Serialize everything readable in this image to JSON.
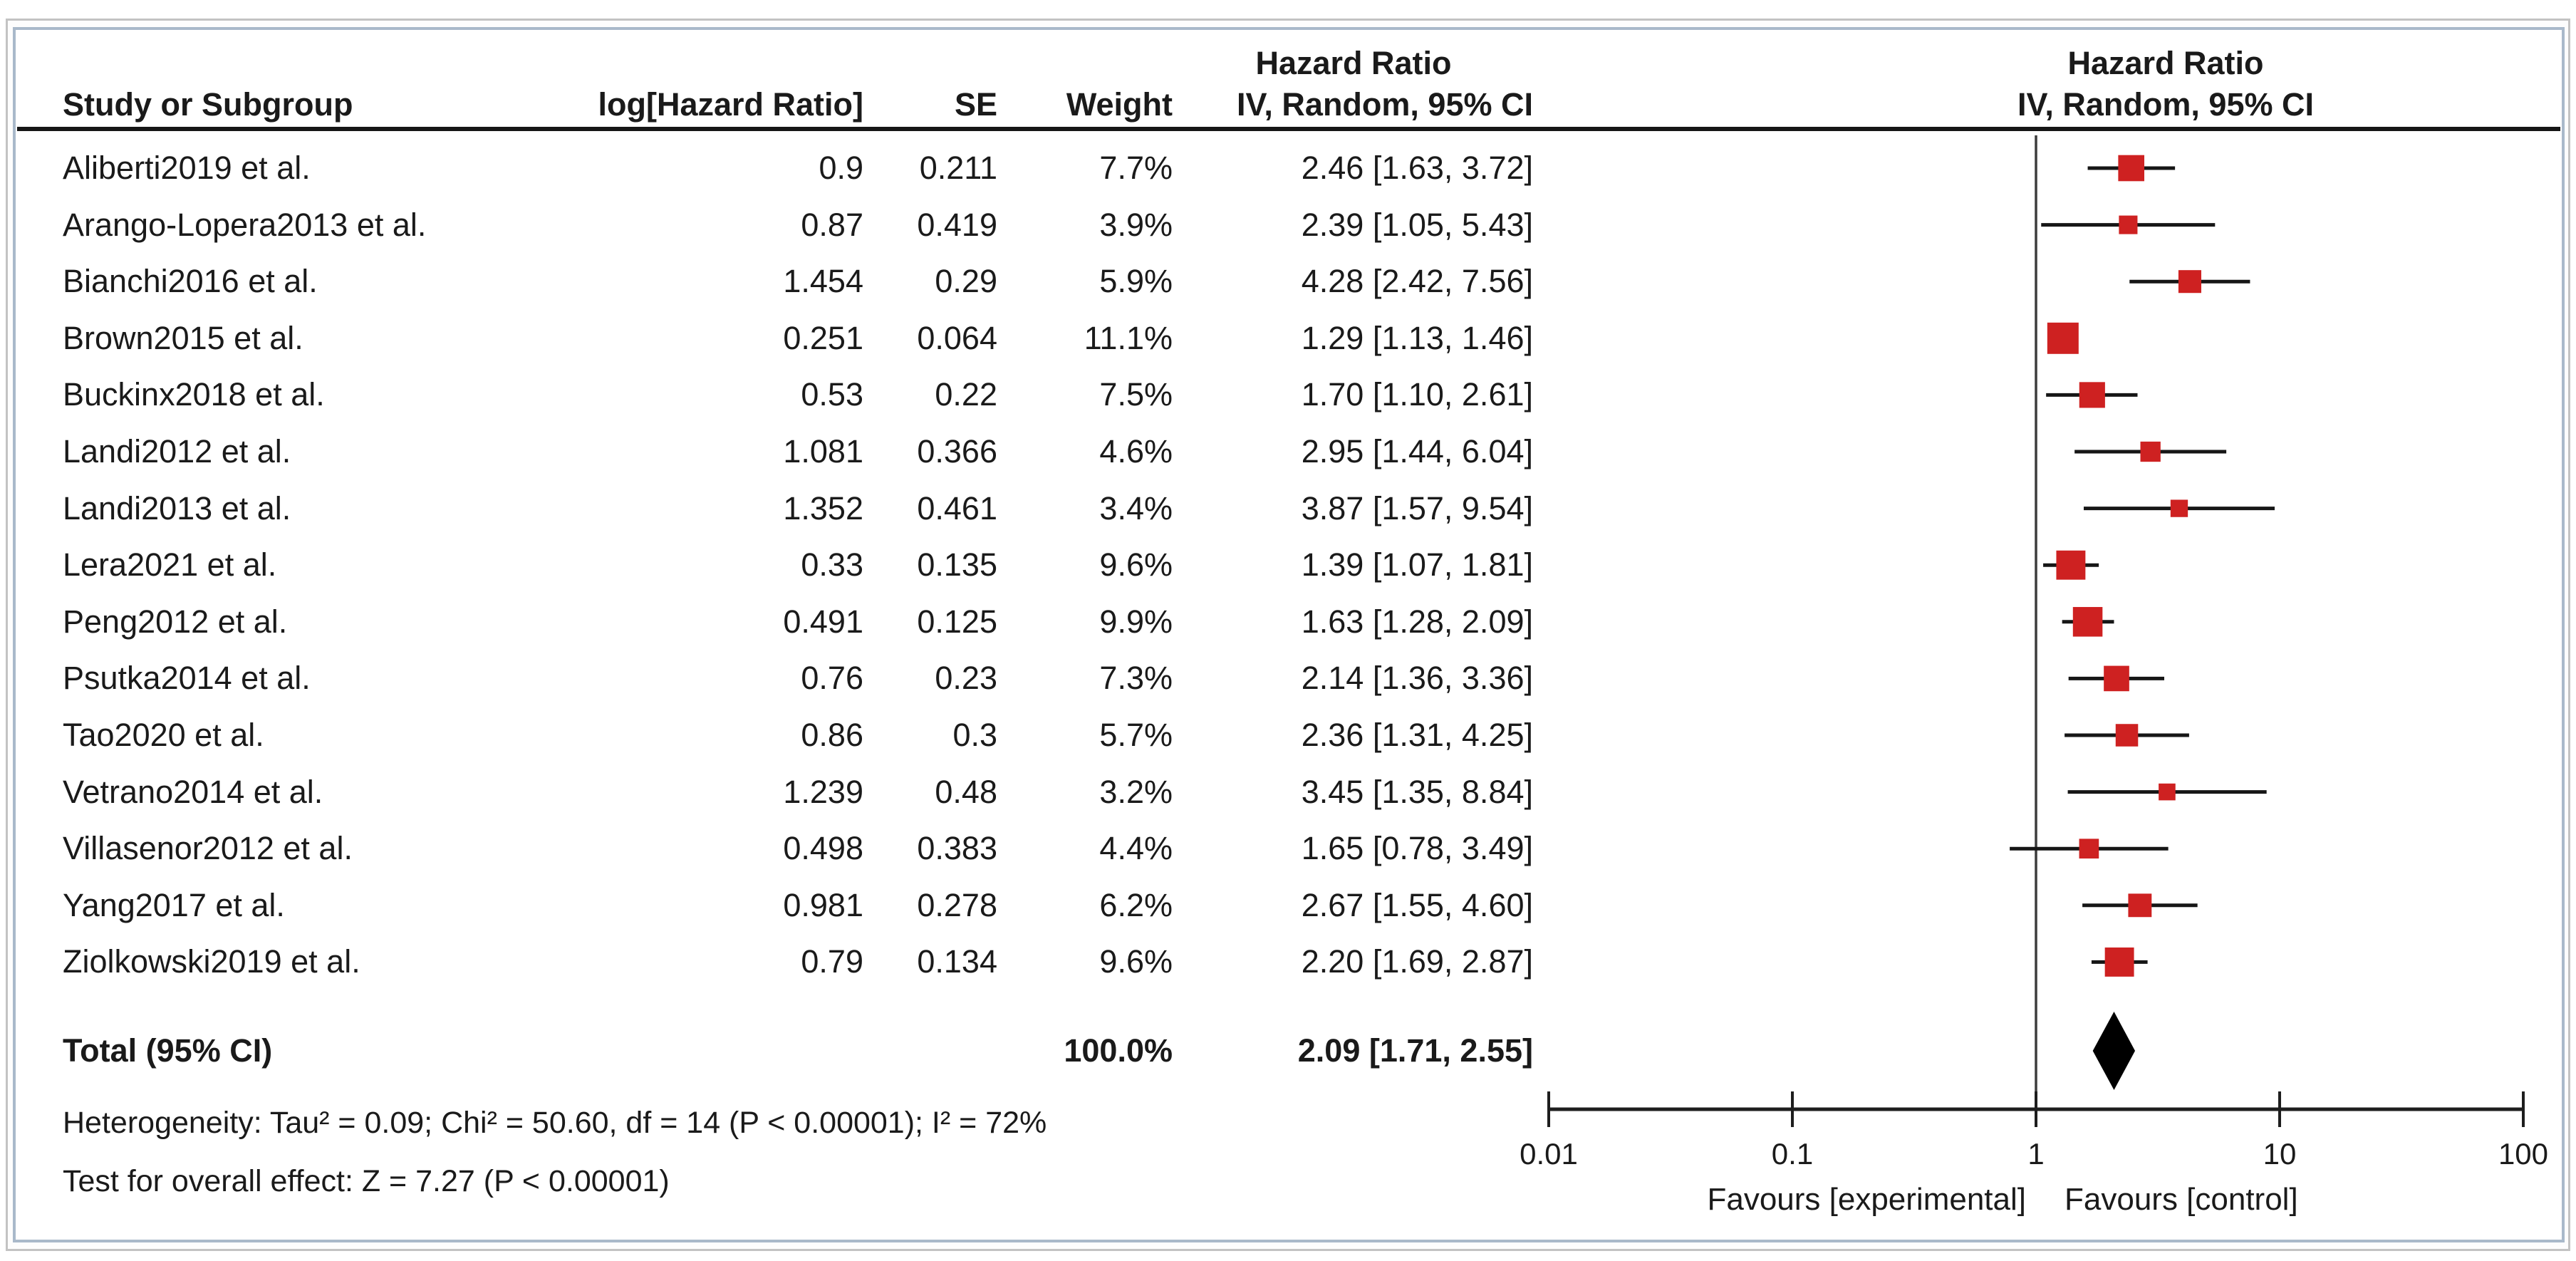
{
  "table": {
    "col_study": "Study or Subgroup",
    "col_log_hr": "log[Hazard Ratio]",
    "col_se": "SE",
    "col_weight": "Weight",
    "ci_col_title": "Hazard Ratio",
    "ci_col_sub": "IV, Random, 95% CI",
    "plot_col_title": "Hazard Ratio",
    "plot_col_sub": "IV, Random, 95% CI"
  },
  "rows": [
    {
      "study": "Aliberti2019 et al.",
      "log_hr": "0.9",
      "se": "0.211",
      "weight": "7.7%",
      "ci": "2.46 [1.63, 3.72]"
    },
    {
      "study": "Arango-Lopera2013 et al.",
      "log_hr": "0.87",
      "se": "0.419",
      "weight": "3.9%",
      "ci": "2.39 [1.05, 5.43]"
    },
    {
      "study": "Bianchi2016 et al.",
      "log_hr": "1.454",
      "se": "0.29",
      "weight": "5.9%",
      "ci": "4.28 [2.42, 7.56]"
    },
    {
      "study": "Brown2015 et al.",
      "log_hr": "0.251",
      "se": "0.064",
      "weight": "11.1%",
      "ci": "1.29 [1.13, 1.46]"
    },
    {
      "study": "Buckinx2018 et al.",
      "log_hr": "0.53",
      "se": "0.22",
      "weight": "7.5%",
      "ci": "1.70 [1.10, 2.61]"
    },
    {
      "study": "Landi2012 et al.",
      "log_hr": "1.081",
      "se": "0.366",
      "weight": "4.6%",
      "ci": "2.95 [1.44, 6.04]"
    },
    {
      "study": "Landi2013 et al.",
      "log_hr": "1.352",
      "se": "0.461",
      "weight": "3.4%",
      "ci": "3.87 [1.57, 9.54]"
    },
    {
      "study": "Lera2021 et al.",
      "log_hr": "0.33",
      "se": "0.135",
      "weight": "9.6%",
      "ci": "1.39 [1.07, 1.81]"
    },
    {
      "study": "Peng2012 et al.",
      "log_hr": "0.491",
      "se": "0.125",
      "weight": "9.9%",
      "ci": "1.63 [1.28, 2.09]"
    },
    {
      "study": "Psutka2014 et al.",
      "log_hr": "0.76",
      "se": "0.23",
      "weight": "7.3%",
      "ci": "2.14 [1.36, 3.36]"
    },
    {
      "study": "Tao2020 et al.",
      "log_hr": "0.86",
      "se": "0.3",
      "weight": "5.7%",
      "ci": "2.36 [1.31, 4.25]"
    },
    {
      "study": "Vetrano2014 et al.",
      "log_hr": "1.239",
      "se": "0.48",
      "weight": "3.2%",
      "ci": "3.45 [1.35, 8.84]"
    },
    {
      "study": "Villasenor2012 et al.",
      "log_hr": "0.498",
      "se": "0.383",
      "weight": "4.4%",
      "ci": "1.65 [0.78, 3.49]"
    },
    {
      "study": "Yang2017 et al.",
      "log_hr": "0.981",
      "se": "0.278",
      "weight": "6.2%",
      "ci": "2.67 [1.55, 4.60]"
    },
    {
      "study": "Ziolkowski2019 et al.",
      "log_hr": "0.79",
      "se": "0.134",
      "weight": "9.6%",
      "ci": "2.20 [1.69, 2.87]"
    }
  ],
  "total": {
    "label": "Total (95% CI)",
    "weight": "100.0%",
    "ci": "2.09 [1.71, 2.55]"
  },
  "footnotes": {
    "heterogeneity": "Heterogeneity: Tau² = 0.09; Chi² = 50.60, df = 14 (P < 0.00001); I² = 72%",
    "overall_effect": "Test for overall effect: Z = 7.27 (P < 0.00001)"
  },
  "axis": {
    "ticks": [
      "0.01",
      "0.1",
      "1",
      "10",
      "100"
    ],
    "favours_left": "Favours [experimental]",
    "favours_right": "Favours [control]"
  },
  "colors": {
    "marker": "#ce2121",
    "ci_line": "#161616",
    "axis_line": "#1e1e1e",
    "ref_line": "#3c3c3c",
    "text": "#1a1a1a",
    "diamond": "#000000",
    "frame_outer": "#c3c3c3",
    "frame_inner": "#a9b9ca"
  },
  "chart_data": {
    "type": "scatter",
    "subtype": "forest-plot",
    "effect_measure": "Hazard Ratio",
    "model": "IV, Random, 95% CI",
    "x_scale": "log10",
    "x_ticks": [
      0.01,
      0.1,
      1,
      10,
      100
    ],
    "xlim": [
      0.01,
      100
    ],
    "ref_line": 1,
    "xlabel_left": "Favours [experimental]",
    "xlabel_right": "Favours [control]",
    "studies": [
      {
        "name": "Aliberti2019 et al.",
        "hr": 2.46,
        "lo": 1.63,
        "hi": 3.72,
        "weight_pct": 7.7
      },
      {
        "name": "Arango-Lopera2013 et al.",
        "hr": 2.39,
        "lo": 1.05,
        "hi": 5.43,
        "weight_pct": 3.9
      },
      {
        "name": "Bianchi2016 et al.",
        "hr": 4.28,
        "lo": 2.42,
        "hi": 7.56,
        "weight_pct": 5.9
      },
      {
        "name": "Brown2015 et al.",
        "hr": 1.29,
        "lo": 1.13,
        "hi": 1.46,
        "weight_pct": 11.1
      },
      {
        "name": "Buckinx2018 et al.",
        "hr": 1.7,
        "lo": 1.1,
        "hi": 2.61,
        "weight_pct": 7.5
      },
      {
        "name": "Landi2012 et al.",
        "hr": 2.95,
        "lo": 1.44,
        "hi": 6.04,
        "weight_pct": 4.6
      },
      {
        "name": "Landi2013 et al.",
        "hr": 3.87,
        "lo": 1.57,
        "hi": 9.54,
        "weight_pct": 3.4
      },
      {
        "name": "Lera2021 et al.",
        "hr": 1.39,
        "lo": 1.07,
        "hi": 1.81,
        "weight_pct": 9.6
      },
      {
        "name": "Peng2012 et al.",
        "hr": 1.63,
        "lo": 1.28,
        "hi": 2.09,
        "weight_pct": 9.9
      },
      {
        "name": "Psutka2014 et al.",
        "hr": 2.14,
        "lo": 1.36,
        "hi": 3.36,
        "weight_pct": 7.3
      },
      {
        "name": "Tao2020 et al.",
        "hr": 2.36,
        "lo": 1.31,
        "hi": 4.25,
        "weight_pct": 5.7
      },
      {
        "name": "Vetrano2014 et al.",
        "hr": 3.45,
        "lo": 1.35,
        "hi": 8.84,
        "weight_pct": 3.2
      },
      {
        "name": "Villasenor2012 et al.",
        "hr": 1.65,
        "lo": 0.78,
        "hi": 3.49,
        "weight_pct": 4.4
      },
      {
        "name": "Yang2017 et al.",
        "hr": 2.67,
        "lo": 1.55,
        "hi": 4.6,
        "weight_pct": 6.2
      },
      {
        "name": "Ziolkowski2019 et al.",
        "hr": 2.2,
        "lo": 1.69,
        "hi": 2.87,
        "weight_pct": 9.6
      }
    ],
    "total": {
      "hr": 2.09,
      "lo": 1.71,
      "hi": 2.55,
      "weight_pct": 100.0
    },
    "heterogeneity": {
      "tau2": 0.09,
      "chi2": 50.6,
      "df": 14,
      "p": "< 0.00001",
      "i2_pct": 72
    },
    "overall_effect": {
      "z": 7.27,
      "p": "< 0.00001"
    }
  }
}
